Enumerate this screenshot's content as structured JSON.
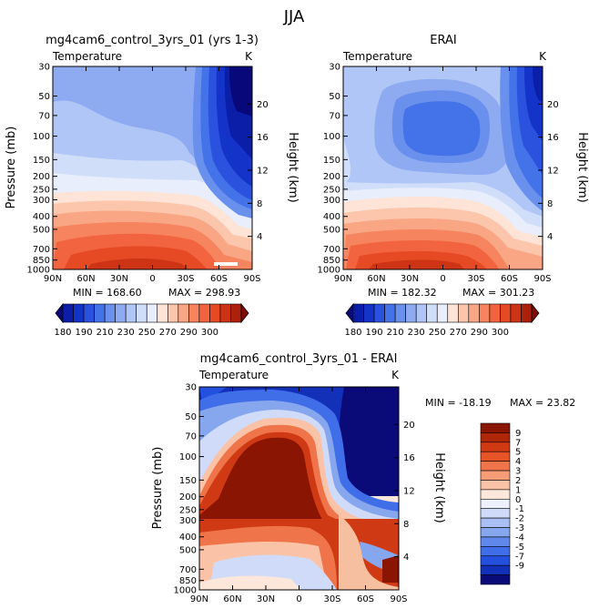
{
  "page_title": "JJA",
  "colors": {
    "scale": [
      "#08087a",
      "#0b1ea8",
      "#1433c8",
      "#2a52df",
      "#4472e8",
      "#6a90ee",
      "#8eabf2",
      "#b0c6f6",
      "#d0defa",
      "#e8eefb",
      "#fde4d6",
      "#fbc6ac",
      "#f9a685",
      "#f6845f",
      "#f1643f",
      "#e54a25",
      "#cc3415",
      "#ab210c",
      "#7e0d05"
    ],
    "diff_scale": [
      "#0a0a78",
      "#1230b8",
      "#2450e0",
      "#3f6ee8",
      "#6088ea",
      "#86a6ee",
      "#aabff3",
      "#cfdbf8",
      "#ecf1fc",
      "#fde6da",
      "#fac3a7",
      "#f69c77",
      "#f07449",
      "#e65428",
      "#cf3a14",
      "#b02708",
      "#8a1503"
    ]
  },
  "chart_data": [
    {
      "type": "heatmap",
      "title": "mg4cam6_control_3yrs_01 (yrs 1-3)",
      "variable": "Temperature",
      "units": "K",
      "xlabel": "",
      "ylabel": "Pressure (mb)",
      "y2label": "Height (km)",
      "x_ticks": [
        "90N",
        "60N",
        "30N",
        "0",
        "30S",
        "60S",
        "90S"
      ],
      "y_ticks": [
        "30",
        "50",
        "70",
        "100",
        "150",
        "200",
        "250",
        "300",
        "400",
        "500",
        "700",
        "850",
        "1000"
      ],
      "y2_ticks": [
        "20",
        "16",
        "12",
        "8",
        "4"
      ],
      "min_label": "MIN = 168.60",
      "max_label": "MAX = 298.93",
      "min": 168.6,
      "max": 298.93,
      "colorbar_labels": [
        "180",
        "190",
        "210",
        "230",
        "250",
        "270",
        "290",
        "300"
      ],
      "colorbar_levels": [
        170,
        180,
        185,
        190,
        200,
        210,
        220,
        230,
        240,
        250,
        260,
        270,
        280,
        285,
        290,
        295,
        300
      ]
    },
    {
      "type": "heatmap",
      "title": "ERAI",
      "variable": "Temperature",
      "units": "K",
      "xlabel": "",
      "ylabel": "",
      "y2label": "Height (km)",
      "x_ticks": [
        "90N",
        "60N",
        "30N",
        "0",
        "30S",
        "60S",
        "90S"
      ],
      "y_ticks": [
        "30",
        "50",
        "70",
        "100",
        "150",
        "200",
        "250",
        "300",
        "400",
        "500",
        "700",
        "850",
        "1000"
      ],
      "y2_ticks": [
        "20",
        "16",
        "12",
        "8",
        "4"
      ],
      "min_label": "MIN = 182.32",
      "max_label": "MAX = 301.23",
      "min": 182.32,
      "max": 301.23,
      "colorbar_labels": [
        "180",
        "190",
        "210",
        "230",
        "250",
        "270",
        "290",
        "300"
      ],
      "colorbar_levels": [
        170,
        180,
        185,
        190,
        200,
        210,
        220,
        230,
        240,
        250,
        260,
        270,
        280,
        285,
        290,
        295,
        300
      ]
    },
    {
      "type": "heatmap",
      "title": "mg4cam6_control_3yrs_01 - ERAI",
      "variable": "Temperature",
      "units": "K",
      "xlabel": "",
      "ylabel": "Pressure (mb)",
      "y2label": "Height (km)",
      "x_ticks": [
        "90N",
        "60N",
        "30N",
        "0",
        "30S",
        "60S",
        "90S"
      ],
      "y_ticks": [
        "30",
        "50",
        "70",
        "100",
        "150",
        "200",
        "250",
        "300",
        "400",
        "500",
        "700",
        "850",
        "1000"
      ],
      "y2_ticks": [
        "20",
        "16",
        "12",
        "8",
        "4"
      ],
      "min_label": "MIN = -18.19",
      "max_label": "MAX =  23.82",
      "min": -18.19,
      "max": 23.82,
      "colorbar_labels": [
        "9",
        "7",
        "5",
        "4",
        "3",
        "2",
        "1",
        "0",
        "-1",
        "-2",
        "-3",
        "-4",
        "-5",
        "-7",
        "-9"
      ]
    }
  ]
}
